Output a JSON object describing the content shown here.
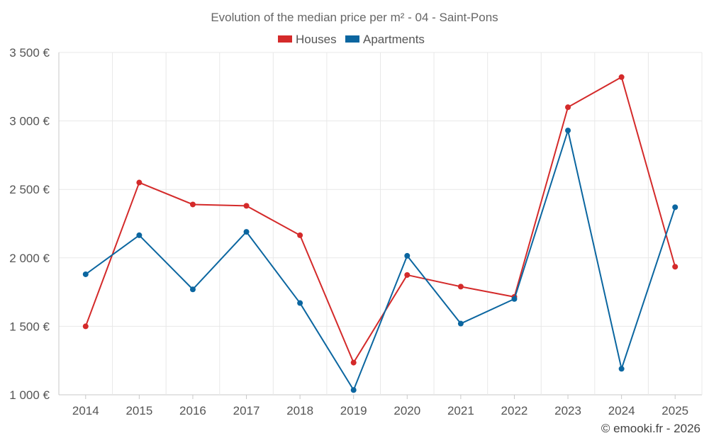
{
  "chart_data": {
    "type": "line",
    "title": "Evolution of the median price per m² - 04 - Saint-Pons",
    "categories": [
      "2014",
      "2015",
      "2016",
      "2017",
      "2018",
      "2019",
      "2020",
      "2021",
      "2022",
      "2023",
      "2024",
      "2025"
    ],
    "ylim": [
      1000,
      3500
    ],
    "yticks": [
      1000,
      1500,
      2000,
      2500,
      3000,
      3500
    ],
    "ytick_labels": [
      "1 000 €",
      "1 500 €",
      "2 000 €",
      "2 500 €",
      "3 000 €",
      "3 500 €"
    ],
    "series": [
      {
        "name": "Houses",
        "color": "#d42a2a",
        "values": [
          1500,
          2550,
          2390,
          2380,
          2165,
          1235,
          1875,
          1790,
          1715,
          3100,
          3320,
          1935
        ]
      },
      {
        "name": "Apartments",
        "color": "#0b66a0",
        "values": [
          1880,
          2165,
          1770,
          2190,
          1670,
          1035,
          2015,
          1520,
          1700,
          2930,
          1190,
          2370
        ]
      }
    ],
    "legend_position": "top-center",
    "grid": true
  },
  "credit": "© emooki.fr - 2026"
}
